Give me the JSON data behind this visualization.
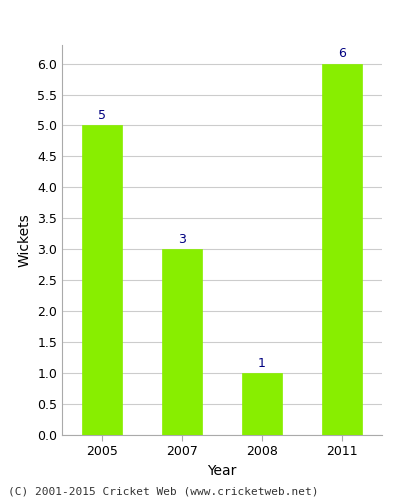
{
  "categories": [
    "2005",
    "2007",
    "2008",
    "2011"
  ],
  "values": [
    5,
    3,
    1,
    6
  ],
  "bar_color": "#88ee00",
  "bar_edgecolor": "#88ee00",
  "xlabel": "Year",
  "ylabel": "Wickets",
  "ylim": [
    0,
    6.3
  ],
  "yticks": [
    0.0,
    0.5,
    1.0,
    1.5,
    2.0,
    2.5,
    3.0,
    3.5,
    4.0,
    4.5,
    5.0,
    5.5,
    6.0
  ],
  "label_color": "#000080",
  "label_fontsize": 9,
  "axis_label_fontsize": 10,
  "tick_fontsize": 9,
  "grid_color": "#cccccc",
  "background_color": "#ffffff",
  "footer_text": "(C) 2001-2015 Cricket Web (www.cricketweb.net)",
  "footer_fontsize": 8,
  "bar_width": 0.5
}
